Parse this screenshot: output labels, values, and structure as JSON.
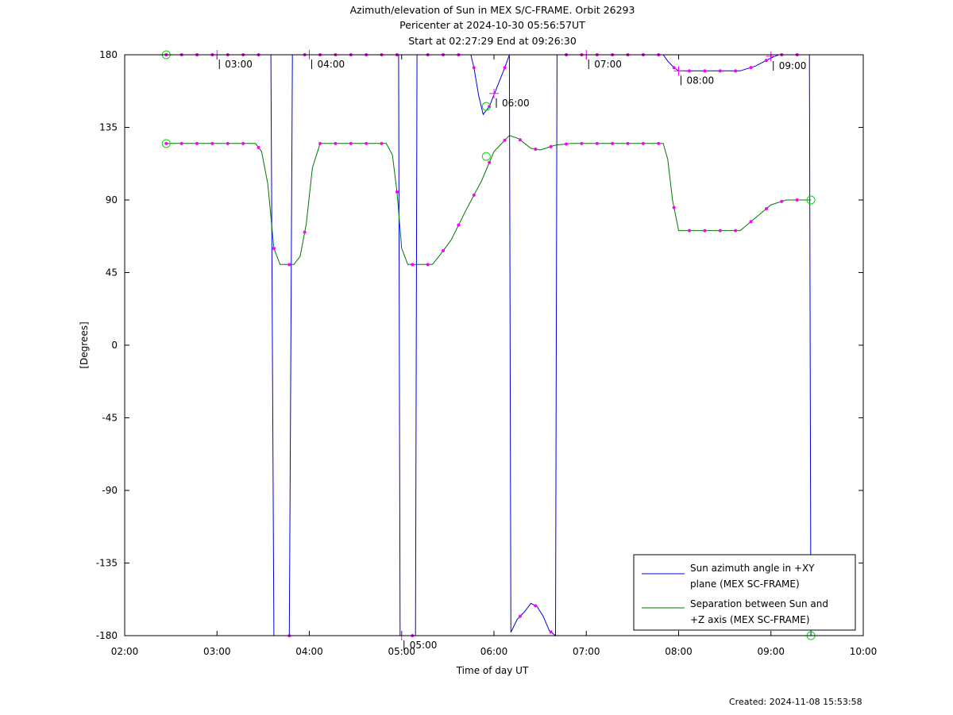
{
  "header": {
    "line1": "Azimuth/elevation of Sun in MEX S/C-FRAME.  Orbit 26293",
    "line2": "Pericenter at 2024-10-30 05:56:57UT",
    "line3": "Start at 02:27:29 End at 09:26:30"
  },
  "footer": {
    "created": "Created: 2024-11-08 15:53:58"
  },
  "colors": {
    "azimuth": "#0000dd",
    "separation": "#007700",
    "markers": "#ff00ff",
    "endpoints": "#00dd00"
  },
  "chart_data": {
    "type": "line",
    "xlabel": "Time of day UT",
    "ylabel": "[Degrees]",
    "xlim": [
      "02:00",
      "10:00"
    ],
    "ylim": [
      -180,
      180
    ],
    "x_ticks": [
      "02:00",
      "03:00",
      "04:00",
      "05:00",
      "06:00",
      "07:00",
      "08:00",
      "09:00",
      "10:00"
    ],
    "y_ticks": [
      180,
      135,
      90,
      45,
      0,
      -45,
      -90,
      -135,
      -180
    ],
    "grid": false,
    "legend_position": "bottom-right",
    "series": [
      {
        "name": "Sun azimuth angle in +XY plane (MEX SC-FRAME)",
        "color": "#0000dd",
        "points": [
          [
            "02:27",
            180
          ],
          [
            "03:35",
            180
          ],
          [
            "03:37",
            -180
          ],
          [
            "03:47",
            -180
          ],
          [
            "03:49",
            180
          ],
          [
            "04:58",
            180
          ],
          [
            "04:59",
            -180
          ],
          [
            "05:09",
            -180
          ],
          [
            "05:10",
            180
          ],
          [
            "05:45",
            180
          ],
          [
            "05:47",
            172
          ],
          [
            "05:50",
            155
          ],
          [
            "05:53",
            143
          ],
          [
            "05:57",
            148
          ],
          [
            "06:02",
            160
          ],
          [
            "06:07",
            172
          ],
          [
            "06:10",
            180
          ],
          [
            "06:11",
            -178
          ],
          [
            "06:15",
            -170
          ],
          [
            "06:20",
            -165
          ],
          [
            "06:24",
            -160
          ],
          [
            "06:28",
            -162
          ],
          [
            "06:32",
            -168
          ],
          [
            "06:36",
            -177
          ],
          [
            "06:40",
            -180
          ],
          [
            "06:41",
            180
          ],
          [
            "07:50",
            180
          ],
          [
            "07:53",
            176
          ],
          [
            "07:57",
            172
          ],
          [
            "08:00",
            170
          ],
          [
            "08:40",
            170
          ],
          [
            "08:50",
            173
          ],
          [
            "09:00",
            178
          ],
          [
            "09:05",
            180
          ],
          [
            "09:25",
            180
          ],
          [
            "09:26",
            -180
          ]
        ]
      },
      {
        "name": "Separation between Sun and +Z axis (MEX SC-FRAME)",
        "color": "#007700",
        "points": [
          [
            "02:27",
            125
          ],
          [
            "03:25",
            125
          ],
          [
            "03:29",
            120
          ],
          [
            "03:33",
            100
          ],
          [
            "03:37",
            60
          ],
          [
            "03:41",
            50
          ],
          [
            "03:50",
            50
          ],
          [
            "03:54",
            55
          ],
          [
            "03:58",
            75
          ],
          [
            "04:02",
            110
          ],
          [
            "04:07",
            125
          ],
          [
            "04:50",
            125
          ],
          [
            "04:54",
            118
          ],
          [
            "04:57",
            95
          ],
          [
            "05:00",
            60
          ],
          [
            "05:04",
            50
          ],
          [
            "05:20",
            50
          ],
          [
            "05:25",
            56
          ],
          [
            "05:32",
            65
          ],
          [
            "05:42",
            84
          ],
          [
            "05:52",
            102
          ],
          [
            "06:00",
            120
          ],
          [
            "06:10",
            130
          ],
          [
            "06:16",
            128
          ],
          [
            "06:24",
            122
          ],
          [
            "06:30",
            121
          ],
          [
            "06:40",
            124
          ],
          [
            "06:50",
            125
          ],
          [
            "07:50",
            125
          ],
          [
            "07:53",
            115
          ],
          [
            "07:56",
            90
          ],
          [
            "08:00",
            71
          ],
          [
            "08:40",
            71
          ],
          [
            "08:50",
            79
          ],
          [
            "09:00",
            87
          ],
          [
            "09:10",
            90
          ],
          [
            "09:26",
            90
          ]
        ]
      }
    ],
    "hour_labels": [
      {
        "text": "03:00",
        "time": "03:00",
        "value": 180
      },
      {
        "text": "04:00",
        "time": "04:00",
        "value": 180
      },
      {
        "text": "05:00",
        "time": "05:00",
        "value": -180
      },
      {
        "text": "06:00",
        "time": "06:00",
        "value": 156
      },
      {
        "text": "07:00",
        "time": "07:00",
        "value": 180
      },
      {
        "text": "08:00",
        "time": "08:00",
        "value": 170
      },
      {
        "text": "09:00",
        "time": "09:00",
        "value": 179
      }
    ],
    "pericenter_marks": [
      {
        "time": "05:55",
        "value": 148
      },
      {
        "time": "05:55",
        "value": 117
      }
    ]
  }
}
